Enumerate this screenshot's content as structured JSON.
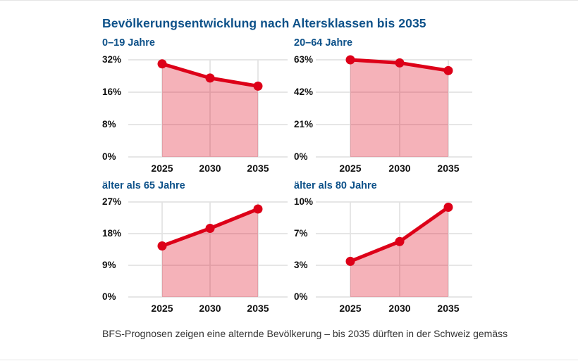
{
  "title": "Bevölkerungsentwicklung nach Altersklassen bis 2035",
  "caption": "BFS-Prognosen zeigen eine alternde Bevölkerung – bis 2035 dürften in der Schweiz gemäss",
  "colors": {
    "title_blue": "#0d5189",
    "line_red": "#dd0018",
    "area_fill": "rgba(221,0,24,0.30)",
    "grid": "#e3e3e3",
    "tick_text": "#111111",
    "caption_text": "#333333"
  },
  "chart_data": [
    {
      "type": "area",
      "title": "0–19 Jahre",
      "x": [
        "2025",
        "2030",
        "2035"
      ],
      "values": [
        30,
        23,
        19
      ],
      "ytick_labels": [
        "32%",
        "16%",
        "8%",
        "0%"
      ],
      "ytick_values": [
        0,
        8,
        16,
        32
      ],
      "ylim": [
        0,
        32
      ],
      "grid": true
    },
    {
      "type": "area",
      "title": "20–64 Jahre",
      "x": [
        "2025",
        "2030",
        "2035"
      ],
      "values": [
        63,
        61,
        56
      ],
      "ytick_labels": [
        "63%",
        "42%",
        "21%",
        "0%"
      ],
      "ytick_values": [
        0,
        21,
        42,
        63
      ],
      "ylim": [
        0,
        63
      ],
      "grid": true
    },
    {
      "type": "area",
      "title": "älter als 65 Jahre",
      "x": [
        "2025",
        "2030",
        "2035"
      ],
      "values": [
        14.5,
        19.5,
        25
      ],
      "ytick_labels": [
        "27%",
        "18%",
        "9%",
        "0%"
      ],
      "ytick_values": [
        0,
        9,
        18,
        27
      ],
      "ylim": [
        0,
        27
      ],
      "grid": true
    },
    {
      "type": "area",
      "title": "älter als 80 Jahre",
      "x": [
        "2025",
        "2030",
        "2035"
      ],
      "values": [
        3.5,
        6,
        9.5
      ],
      "ytick_labels": [
        "10%",
        "7%",
        "3%",
        "0%"
      ],
      "ytick_values": [
        0,
        3,
        7,
        10
      ],
      "ylim": [
        0,
        10
      ],
      "grid": true
    }
  ]
}
